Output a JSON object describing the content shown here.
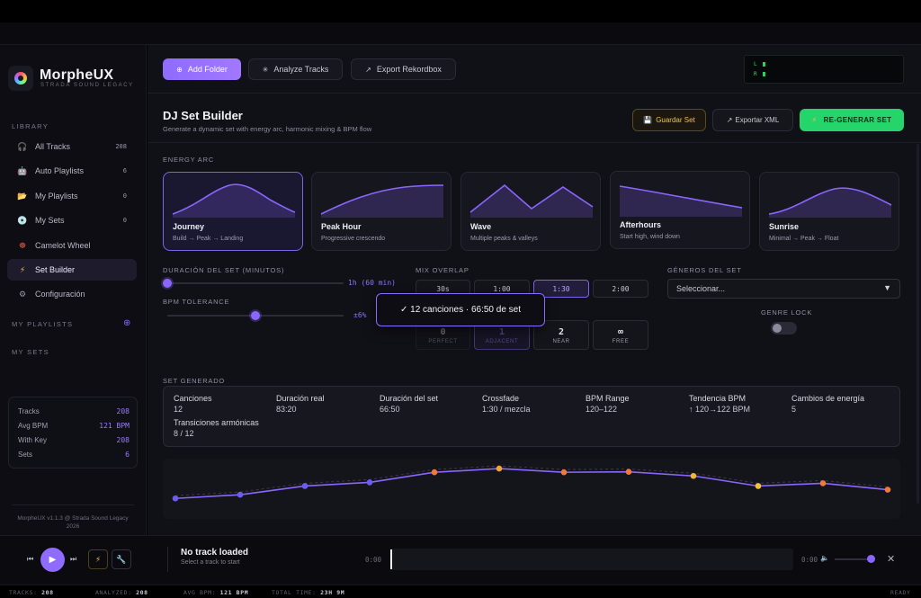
{
  "app": {
    "name": "MorpheUX",
    "subtitle": "STRADA SOUND LEGACY",
    "footer": "MorpheUX v1.1.3 @ Strada Sound Legacy 2026"
  },
  "sidebar": {
    "library_label": "LIBRARY",
    "items": [
      {
        "label": "All Tracks",
        "count": "208",
        "icon": "headphones-icon"
      },
      {
        "label": "Auto Playlists",
        "count": "6",
        "icon": "robot-icon"
      },
      {
        "label": "My Playlists",
        "count": "0",
        "icon": "folder-icon"
      },
      {
        "label": "My Sets",
        "count": "0",
        "icon": "disc-icon"
      },
      {
        "label": "Camelot Wheel",
        "count": "",
        "icon": "wheel-icon"
      },
      {
        "label": "Set Builder",
        "count": "",
        "icon": "lightning-icon"
      },
      {
        "label": "Configuración",
        "count": "",
        "icon": "gear-icon"
      }
    ],
    "my_playlists_label": "MY PLAYLISTS",
    "my_sets_label": "MY SETS",
    "plus_icon": "plus-circle-icon",
    "stats": [
      {
        "label": "Tracks",
        "value": "208"
      },
      {
        "label": "Avg BPM",
        "value": "121 BPM"
      },
      {
        "label": "With Key",
        "value": "208"
      },
      {
        "label": "Sets",
        "value": "6"
      }
    ]
  },
  "toolbar": {
    "add_folder": "Add Folder",
    "analyze": "Analyze Tracks",
    "export": "Export Rekordbox",
    "meter_l": "L",
    "meter_r": "R"
  },
  "header": {
    "title": "DJ Set Builder",
    "subtitle": "Generate a dynamic set with energy arc, harmonic mixing & BPM flow",
    "save": "Guardar Set",
    "export_xml": "Exportar XML",
    "regenerate": "RE-GENERAR SET"
  },
  "energy": {
    "label": "ENERGY ARC",
    "cards": [
      {
        "name": "Journey",
        "desc": "Build → Peak → Landing",
        "selected": true
      },
      {
        "name": "Peak Hour",
        "desc": "Progressive crescendo",
        "selected": false
      },
      {
        "name": "Wave",
        "desc": "Multiple peaks & valleys",
        "selected": false
      },
      {
        "name": "Afterhours",
        "desc": "Start high, wind down",
        "selected": false
      },
      {
        "name": "Sunrise",
        "desc": "Minimal → Peak → Float",
        "selected": false
      }
    ]
  },
  "duration": {
    "label": "DURACIÓN DEL SET (MINUTOS)",
    "value": "1h (60 min)",
    "level": 0.0
  },
  "bpm_tol": {
    "label": "BPM TOLERANCE",
    "value": "±6%",
    "level": 0.5
  },
  "mix_overlap": {
    "label": "MIX OVERLAP",
    "options": [
      "30s",
      "1:00",
      "1:30",
      "2:00"
    ],
    "selected": "1:30"
  },
  "harmonic": {
    "options": [
      {
        "n": "0",
        "s": "PERFECT"
      },
      {
        "n": "1",
        "s": "ADJACENT"
      },
      {
        "n": "2",
        "s": "NEAR"
      },
      {
        "n": "∞",
        "s": "FREE"
      }
    ],
    "selected": "1"
  },
  "genres": {
    "label": "GÉNEROS DEL SET",
    "placeholder": "Seleccionar...",
    "lock_label": "GENRE LOCK",
    "lock_on": false
  },
  "toast": "✓ 12 canciones · 66:50 de set",
  "generated": {
    "label": "SET GENERADO",
    "summary": [
      {
        "k": "Canciones",
        "v": "12"
      },
      {
        "k": "Duración real",
        "v": "83:20"
      },
      {
        "k": "Duración del set",
        "v": "66:50"
      },
      {
        "k": "Crossfade",
        "v": "1:30 / mezcla"
      },
      {
        "k": "BPM Range",
        "v": "120–122"
      },
      {
        "k": "Tendencia BPM",
        "v": "↑ 120→122 BPM"
      },
      {
        "k": "Cambios de energía",
        "v": "5"
      },
      {
        "k": "Transiciones armónicas",
        "v": "8 / 12"
      }
    ]
  },
  "chart_data": {
    "type": "line",
    "x": [
      1,
      2,
      3,
      4,
      5,
      6,
      7,
      8,
      9,
      10,
      11,
      12
    ],
    "series": [
      {
        "values": [
          0.25,
          0.33,
          0.52,
          0.6,
          0.82,
          0.9,
          0.82,
          0.83,
          0.74,
          0.52,
          0.58,
          0.44
        ]
      }
    ],
    "point_colors": [
      "#6d5cf0",
      "#6d5cf0",
      "#6d5cf0",
      "#6d5cf0",
      "#f07a3c",
      "#f6a13a",
      "#f07a3c",
      "#f07a3c",
      "#f2b43a",
      "#f4c23c",
      "#f07a3c",
      "#f07a3c"
    ],
    "ylim": [
      0,
      1
    ]
  },
  "player": {
    "title": "No track loaded",
    "subtitle": "Select a track to start",
    "time_left": "0:00",
    "time_right": "0:00",
    "volume": 0.9
  },
  "statusbar": {
    "tracks_label": "TRACKS:",
    "tracks": "208",
    "analyzed_label": "ANALYZED:",
    "analyzed": "208",
    "avg_label": "AVG BPM:",
    "avg": "121 BPM",
    "total_label": "TOTAL TIME:",
    "total": "23H 9M",
    "ready": "READY"
  },
  "colors": {
    "accent": "#8f6bff",
    "green": "#26d46c",
    "gold": "#f0c24a"
  }
}
